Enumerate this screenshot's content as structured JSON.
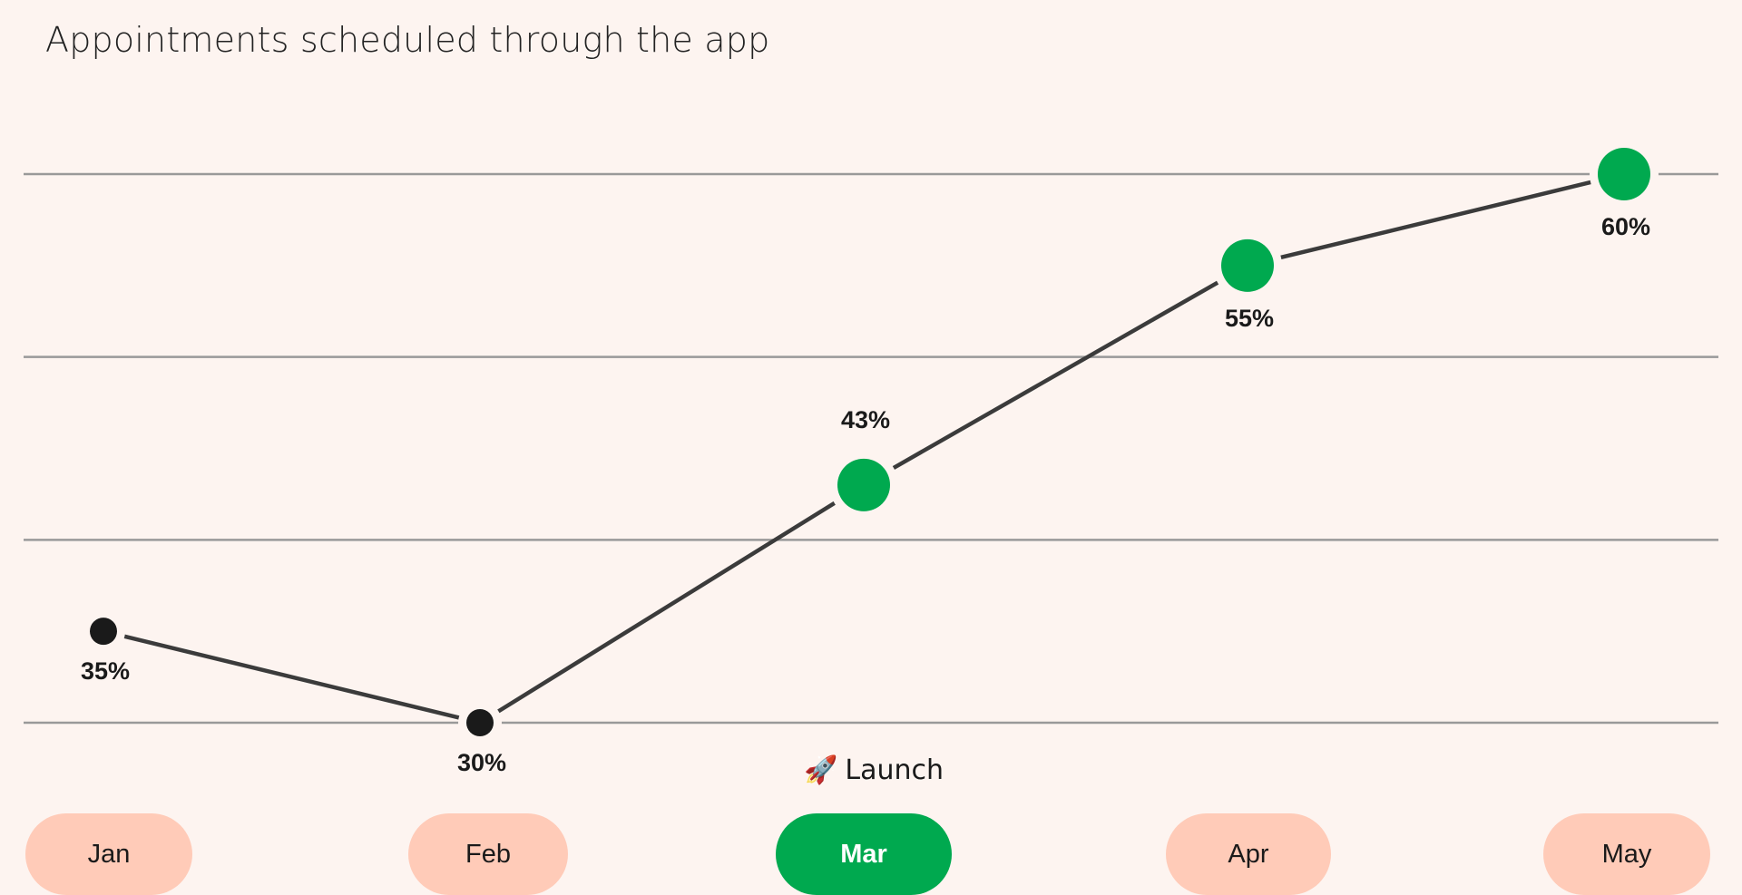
{
  "title": "Appointments scheduled through the app",
  "annotation": {
    "icon": "rocket-icon",
    "label": "Launch"
  },
  "months": [
    {
      "label": "Jan",
      "active": false
    },
    {
      "label": "Feb",
      "active": false
    },
    {
      "label": "Mar",
      "active": true
    },
    {
      "label": "Apr",
      "active": false
    },
    {
      "label": "May",
      "active": false
    }
  ],
  "colors": {
    "background": "#fdf4f0",
    "accent": "#00a94f",
    "pre_launch_point": "#1a1a1a",
    "line": "#3b3b3b",
    "gridline": "#999999",
    "pill": "#ffcbb8"
  },
  "chart_data": {
    "type": "line",
    "title": "Appointments scheduled through the app",
    "categories": [
      "Jan",
      "Feb",
      "Mar",
      "Apr",
      "May"
    ],
    "values": [
      35,
      30,
      43,
      55,
      60
    ],
    "value_labels": [
      "35%",
      "30%",
      "43%",
      "55%",
      "60%"
    ],
    "highlight_from_index": 2,
    "label_above": [
      false,
      false,
      true,
      false,
      false
    ],
    "ylim": [
      30,
      60
    ],
    "gridlines": [
      30,
      40,
      50,
      60
    ],
    "grid": true,
    "xlabel": "",
    "ylabel": ""
  }
}
